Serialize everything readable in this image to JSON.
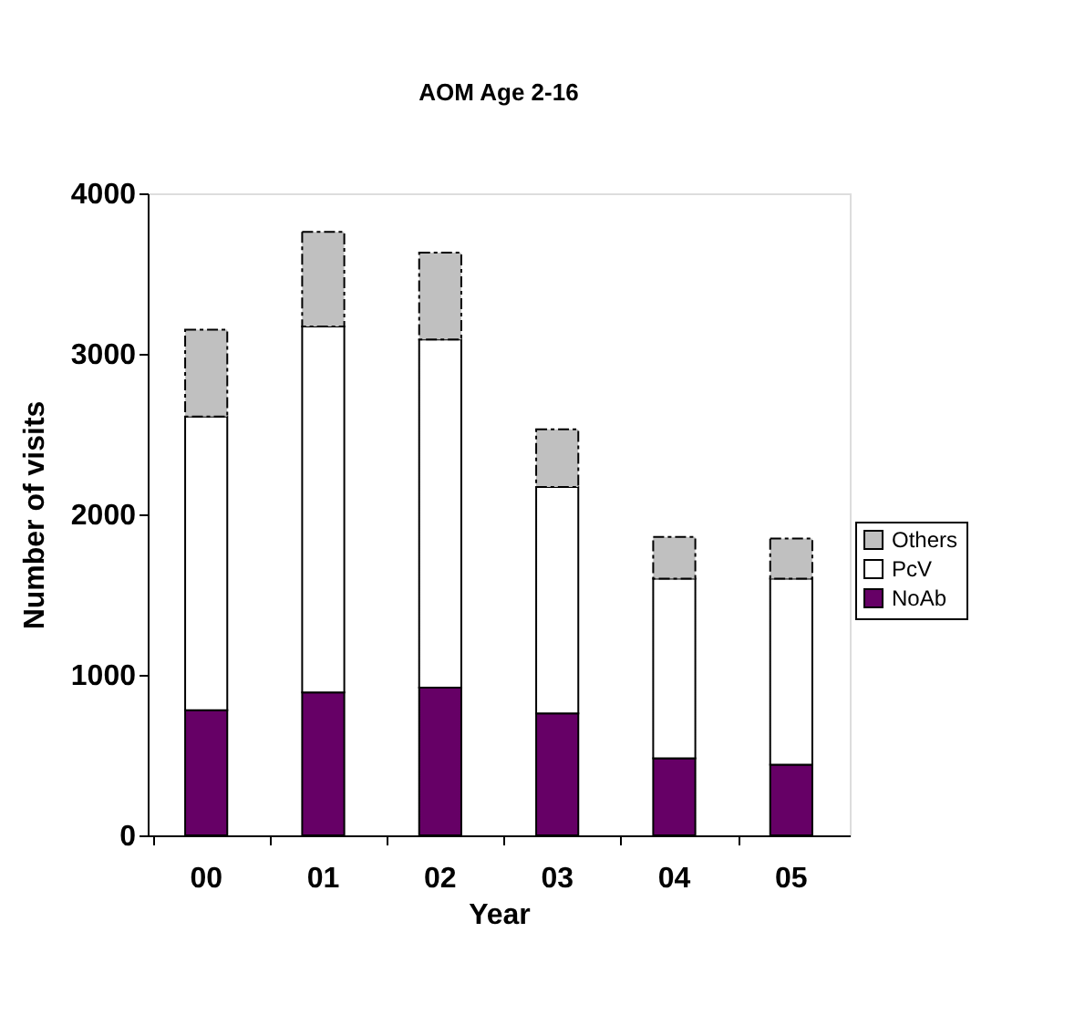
{
  "chart_data": {
    "type": "bar",
    "title": "AOM Age 2-16",
    "xlabel": "Year",
    "ylabel": "Number of visits",
    "categories": [
      "00",
      "01",
      "02",
      "03",
      "04",
      "05"
    ],
    "stacked": true,
    "ylim": [
      0,
      4000
    ],
    "yticks": [
      0,
      1000,
      2000,
      3000,
      4000
    ],
    "grid": false,
    "legend": "right",
    "series": [
      {
        "name": "NoAb",
        "color": "#660066",
        "values": [
          780,
          890,
          920,
          760,
          480,
          440
        ]
      },
      {
        "name": "PcV",
        "color": "#ffffff",
        "values": [
          1830,
          2280,
          2170,
          1410,
          1120,
          1160
        ]
      },
      {
        "name": "Others",
        "color": "#c0c0c0",
        "line_style": "dashed",
        "values": [
          540,
          590,
          540,
          360,
          260,
          250
        ]
      }
    ]
  }
}
